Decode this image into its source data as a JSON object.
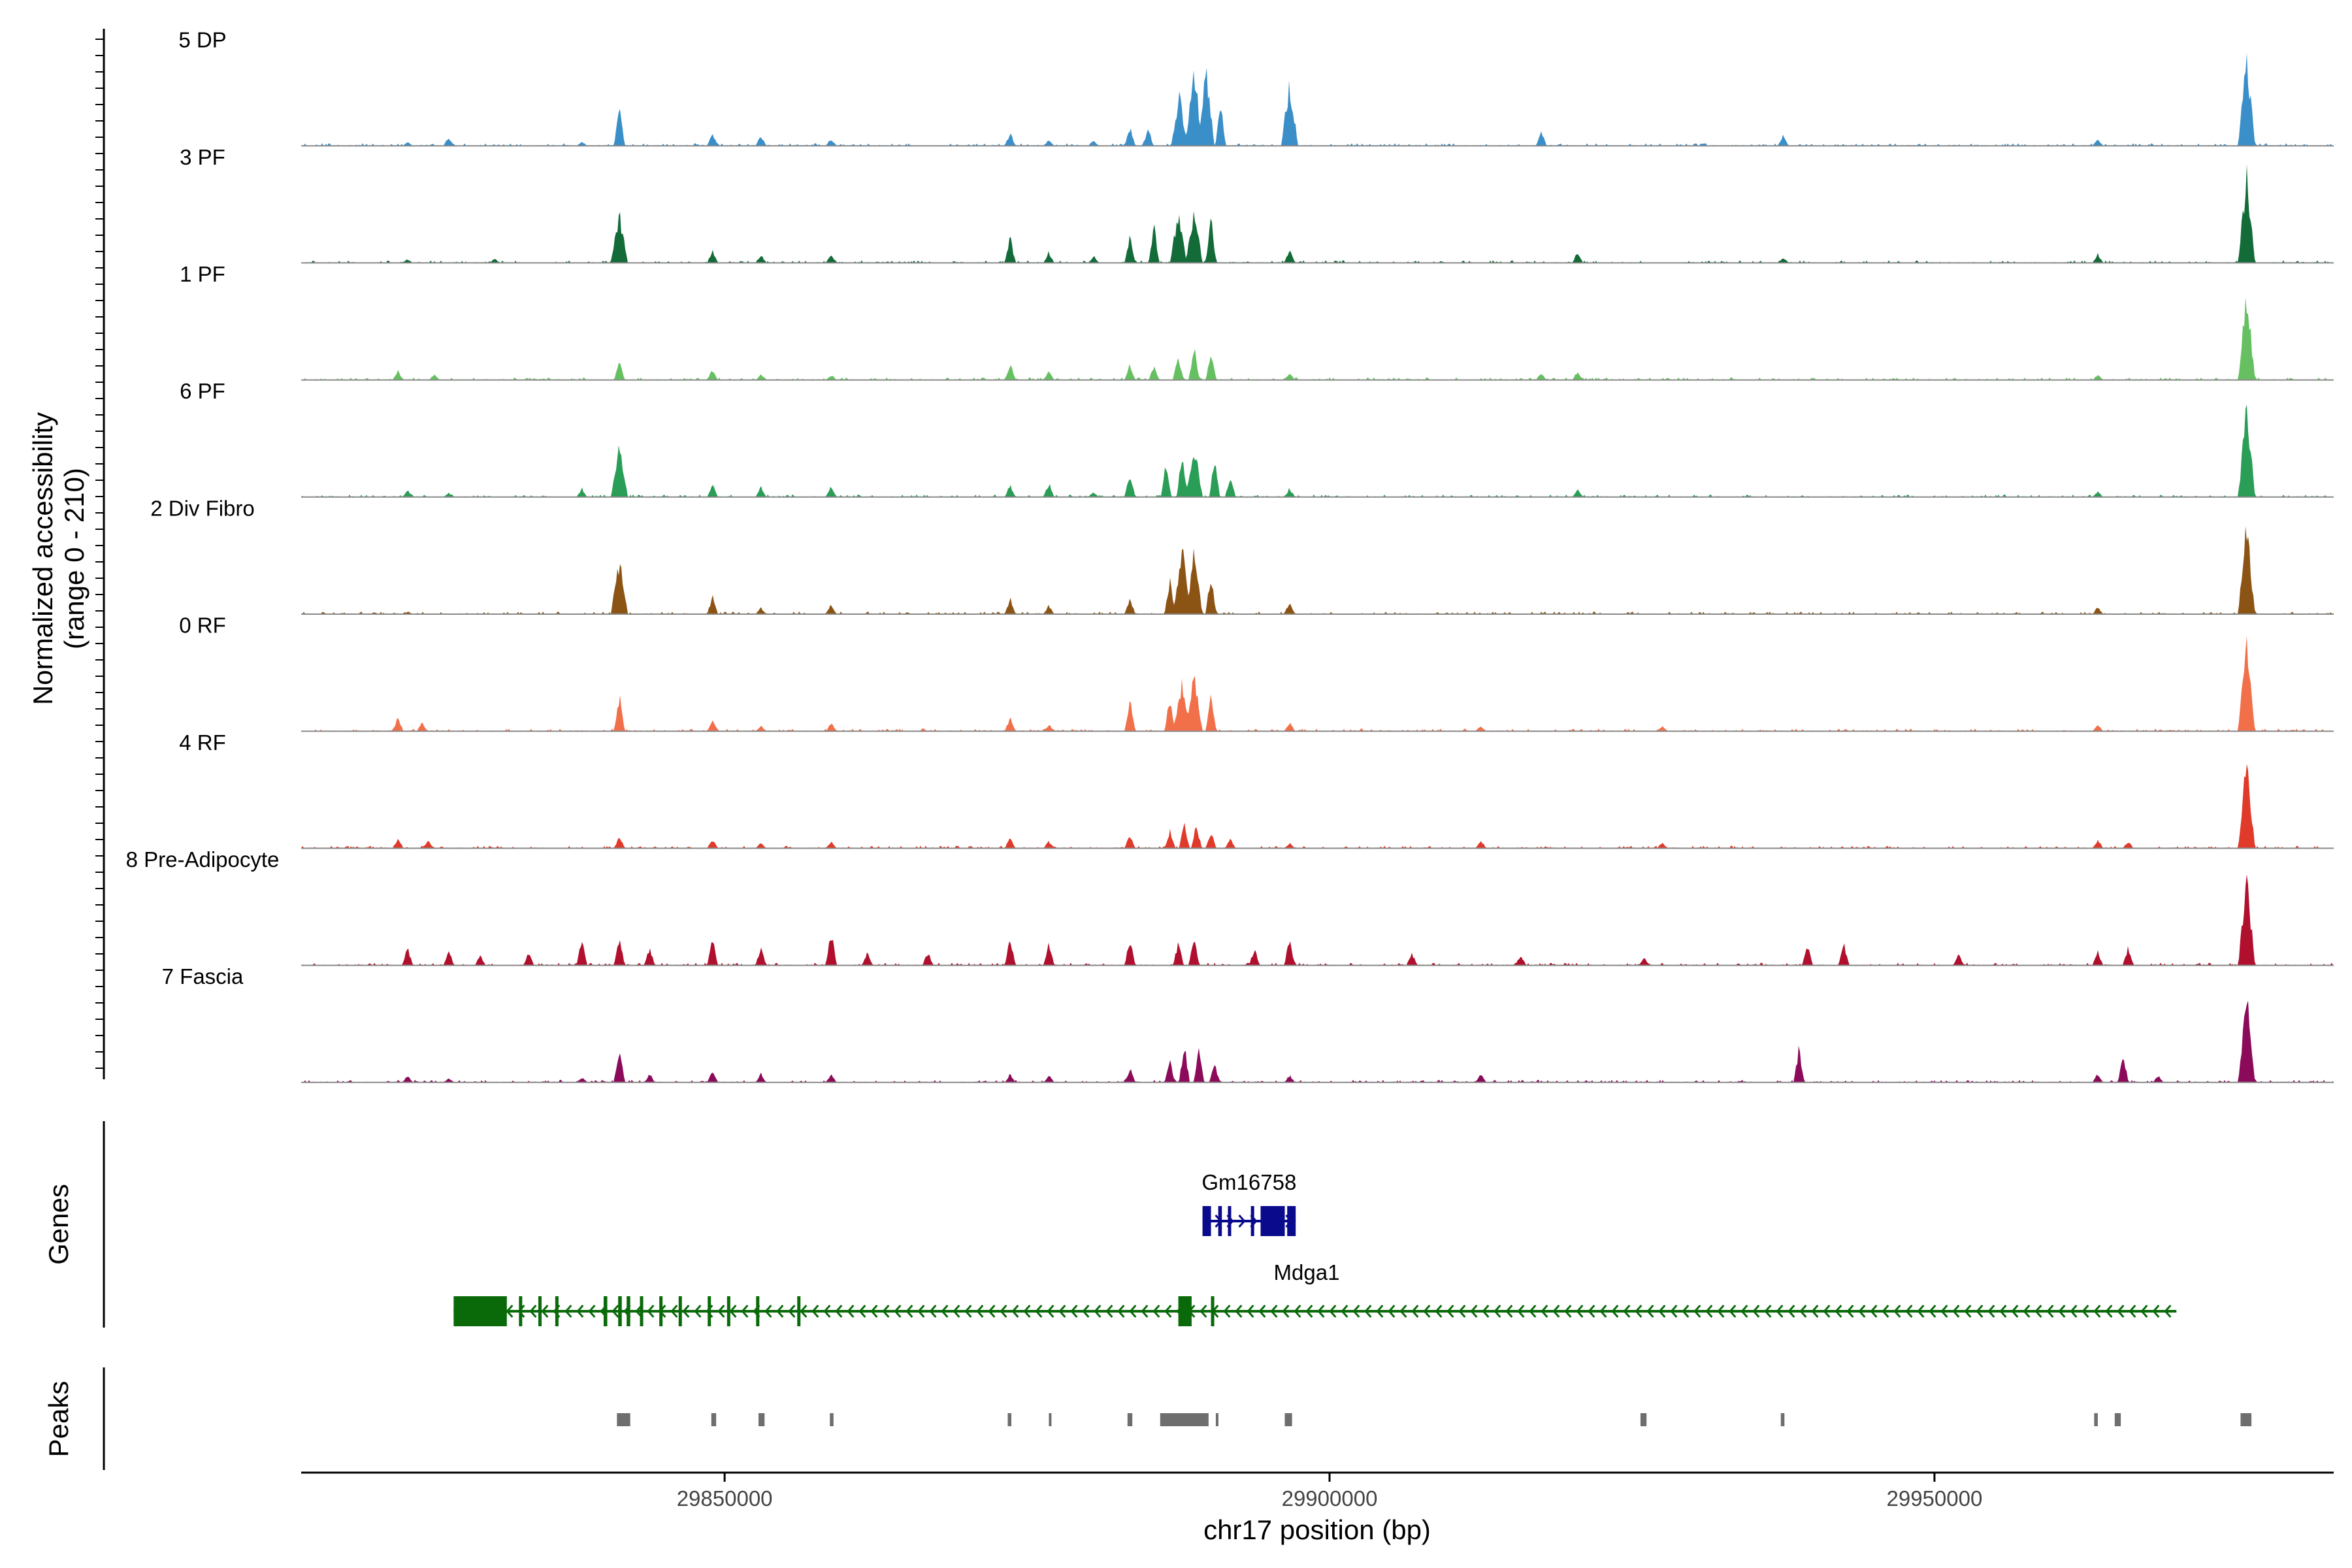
{
  "chart_data": {
    "type": "genome-coverage",
    "chromosome": "chr17",
    "x_range": [
      29815000,
      29983000
    ],
    "y_axis_label": "Normalized accessibility",
    "y_axis_range_label": "(range 0 - 210)",
    "y_range": [
      0,
      210
    ],
    "x_label": "chr17 position (bp)",
    "x_ticks": [
      {
        "value": 29850000,
        "label": "29850000"
      },
      {
        "value": 29900000,
        "label": "29900000"
      },
      {
        "value": 29950000,
        "label": "29950000"
      }
    ],
    "tracks": [
      {
        "name": "5 DP",
        "color": "#3a8fc9",
        "peaks": [
          [
            29823800,
            0.04
          ],
          [
            29827200,
            0.1
          ],
          [
            29838200,
            0.05
          ],
          [
            29841300,
            0.44
          ],
          [
            29849000,
            0.14
          ],
          [
            29853000,
            0.12
          ],
          [
            29858800,
            0.08
          ],
          [
            29873600,
            0.15
          ],
          [
            29876800,
            0.07
          ],
          [
            29880500,
            0.06
          ],
          [
            29883500,
            0.22
          ],
          [
            29885000,
            0.2
          ],
          [
            29887600,
            0.55
          ],
          [
            29888800,
            0.9
          ],
          [
            29889800,
            0.85
          ],
          [
            29891000,
            0.45
          ],
          [
            29896700,
            0.72
          ],
          [
            29917500,
            0.16
          ],
          [
            29937500,
            0.12
          ],
          [
            29963500,
            0.08
          ],
          [
            29975800,
            1.0
          ]
        ]
      },
      {
        "name": "3 PF",
        "color": "#136b38",
        "peaks": [
          [
            29823800,
            0.04
          ],
          [
            29831000,
            0.05
          ],
          [
            29841300,
            0.55
          ],
          [
            29849000,
            0.14
          ],
          [
            29853000,
            0.1
          ],
          [
            29858800,
            0.09
          ],
          [
            29873600,
            0.3
          ],
          [
            29876800,
            0.12
          ],
          [
            29880500,
            0.08
          ],
          [
            29883500,
            0.32
          ],
          [
            29885500,
            0.4
          ],
          [
            29887500,
            0.55
          ],
          [
            29888800,
            0.62
          ],
          [
            29890200,
            0.5
          ],
          [
            29896700,
            0.15
          ],
          [
            29920500,
            0.12
          ],
          [
            29937500,
            0.06
          ],
          [
            29963500,
            0.1
          ],
          [
            29975800,
            1.0
          ]
        ]
      },
      {
        "name": "1 PF",
        "color": "#66c061",
        "peaks": [
          [
            29823000,
            0.1
          ],
          [
            29826000,
            0.06
          ],
          [
            29841300,
            0.2
          ],
          [
            29849000,
            0.12
          ],
          [
            29853000,
            0.06
          ],
          [
            29858800,
            0.06
          ],
          [
            29873600,
            0.18
          ],
          [
            29876800,
            0.1
          ],
          [
            29883500,
            0.18
          ],
          [
            29885500,
            0.16
          ],
          [
            29887500,
            0.28
          ],
          [
            29888800,
            0.36
          ],
          [
            29890200,
            0.3
          ],
          [
            29896700,
            0.08
          ],
          [
            29917500,
            0.08
          ],
          [
            29920500,
            0.1
          ],
          [
            29963500,
            0.06
          ],
          [
            29975800,
            1.0
          ]
        ]
      },
      {
        "name": "6 PF",
        "color": "#2a9d56",
        "peaks": [
          [
            29823800,
            0.08
          ],
          [
            29827200,
            0.05
          ],
          [
            29838200,
            0.1
          ],
          [
            29841300,
            0.55
          ],
          [
            29849000,
            0.14
          ],
          [
            29853000,
            0.12
          ],
          [
            29858800,
            0.12
          ],
          [
            29873600,
            0.14
          ],
          [
            29876800,
            0.16
          ],
          [
            29880500,
            0.06
          ],
          [
            29883500,
            0.28
          ],
          [
            29886500,
            0.38
          ],
          [
            29887800,
            0.5
          ],
          [
            29888800,
            0.6
          ],
          [
            29890500,
            0.42
          ],
          [
            29891800,
            0.25
          ],
          [
            29896700,
            0.1
          ],
          [
            29920500,
            0.08
          ],
          [
            29963500,
            0.06
          ],
          [
            29975800,
            1.0
          ]
        ]
      },
      {
        "name": "2 Div Fibro",
        "color": "#8c5414",
        "peaks": [
          [
            29823800,
            0.03
          ],
          [
            29841300,
            0.62
          ],
          [
            29849000,
            0.2
          ],
          [
            29853000,
            0.08
          ],
          [
            29858800,
            0.12
          ],
          [
            29873600,
            0.18
          ],
          [
            29876800,
            0.1
          ],
          [
            29883500,
            0.18
          ],
          [
            29886800,
            0.4
          ],
          [
            29887800,
            0.75
          ],
          [
            29888800,
            0.68
          ],
          [
            29890200,
            0.45
          ],
          [
            29896700,
            0.14
          ],
          [
            29963500,
            0.08
          ],
          [
            29975800,
            1.0
          ]
        ]
      },
      {
        "name": "0 RF",
        "color": "#f1704a",
        "peaks": [
          [
            29823000,
            0.15
          ],
          [
            29825000,
            0.1
          ],
          [
            29841300,
            0.4
          ],
          [
            29849000,
            0.14
          ],
          [
            29853000,
            0.06
          ],
          [
            29858800,
            0.1
          ],
          [
            29873600,
            0.15
          ],
          [
            29876800,
            0.08
          ],
          [
            29883500,
            0.35
          ],
          [
            29886800,
            0.4
          ],
          [
            29887800,
            0.55
          ],
          [
            29888800,
            0.6
          ],
          [
            29890200,
            0.42
          ],
          [
            29896700,
            0.1
          ],
          [
            29912500,
            0.06
          ],
          [
            29927500,
            0.06
          ],
          [
            29963500,
            0.08
          ],
          [
            29975800,
            1.0
          ]
        ]
      },
      {
        "name": "4 RF",
        "color": "#e03a2a",
        "peaks": [
          [
            29823000,
            0.12
          ],
          [
            29825500,
            0.08
          ],
          [
            29841300,
            0.14
          ],
          [
            29849000,
            0.1
          ],
          [
            29853000,
            0.06
          ],
          [
            29858800,
            0.08
          ],
          [
            29873600,
            0.12
          ],
          [
            29876800,
            0.08
          ],
          [
            29883500,
            0.15
          ],
          [
            29886800,
            0.2
          ],
          [
            29888000,
            0.28
          ],
          [
            29889000,
            0.26
          ],
          [
            29890200,
            0.18
          ],
          [
            29891800,
            0.1
          ],
          [
            29896700,
            0.06
          ],
          [
            29912500,
            0.1
          ],
          [
            29927500,
            0.06
          ],
          [
            29963500,
            0.1
          ],
          [
            29966000,
            0.08
          ],
          [
            29975800,
            1.0
          ]
        ]
      },
      {
        "name": "8 Pre-Adipocyte",
        "color": "#b0102e",
        "peaks": [
          [
            29823800,
            0.2
          ],
          [
            29827200,
            0.18
          ],
          [
            29829800,
            0.12
          ],
          [
            29833800,
            0.14
          ],
          [
            29838200,
            0.28
          ],
          [
            29841300,
            0.32
          ],
          [
            29843800,
            0.2
          ],
          [
            29849000,
            0.3
          ],
          [
            29853000,
            0.22
          ],
          [
            29858800,
            0.4
          ],
          [
            29861800,
            0.14
          ],
          [
            29866800,
            0.15
          ],
          [
            29873600,
            0.3
          ],
          [
            29876800,
            0.25
          ],
          [
            29883500,
            0.3
          ],
          [
            29887500,
            0.25
          ],
          [
            29888800,
            0.3
          ],
          [
            29893800,
            0.2
          ],
          [
            29896700,
            0.3
          ],
          [
            29906800,
            0.14
          ],
          [
            29915800,
            0.12
          ],
          [
            29926000,
            0.1
          ],
          [
            29939500,
            0.25
          ],
          [
            29942500,
            0.25
          ],
          [
            29952000,
            0.12
          ],
          [
            29963500,
            0.15
          ],
          [
            29966000,
            0.2
          ],
          [
            29975800,
            1.0
          ]
        ]
      },
      {
        "name": "7 Fascia",
        "color": "#8c0a5a",
        "peaks": [
          [
            29823800,
            0.08
          ],
          [
            29827200,
            0.05
          ],
          [
            29838200,
            0.06
          ],
          [
            29841300,
            0.42
          ],
          [
            29843800,
            0.1
          ],
          [
            29849000,
            0.12
          ],
          [
            29853000,
            0.1
          ],
          [
            29858800,
            0.1
          ],
          [
            29873600,
            0.1
          ],
          [
            29876800,
            0.08
          ],
          [
            29883500,
            0.16
          ],
          [
            29886800,
            0.24
          ],
          [
            29888000,
            0.42
          ],
          [
            29889200,
            0.36
          ],
          [
            29890500,
            0.2
          ],
          [
            29896700,
            0.08
          ],
          [
            29912500,
            0.1
          ],
          [
            29938800,
            0.38
          ],
          [
            29963500,
            0.1
          ],
          [
            29965600,
            0.3
          ],
          [
            29968500,
            0.08
          ],
          [
            29975800,
            1.0
          ]
        ]
      }
    ],
    "genes": [
      {
        "name": "Gm16758",
        "color": "#0a0a8c",
        "strand": "+",
        "start": 29889500,
        "end": 29897200,
        "exons": [
          [
            29889500,
            29890200
          ],
          [
            29890800,
            29891100
          ],
          [
            29891600,
            29891800
          ],
          [
            29893500,
            29893700
          ],
          [
            29894300,
            29896300
          ],
          [
            29896500,
            29897200
          ]
        ]
      },
      {
        "name": "Mdga1",
        "color": "#0a6a0a",
        "strand": "-",
        "start": 29827600,
        "end": 29970000,
        "exons": [
          [
            29827600,
            29832000
          ],
          [
            29833000,
            29833200
          ],
          [
            29834600,
            29834800
          ],
          [
            29836000,
            29836200
          ],
          [
            29840000,
            29840300
          ],
          [
            29841200,
            29841500
          ],
          [
            29841900,
            29842200
          ],
          [
            29843000,
            29843200
          ],
          [
            29844600,
            29844800
          ],
          [
            29846200,
            29846400
          ],
          [
            29848600,
            29848800
          ],
          [
            29850200,
            29850400
          ],
          [
            29852600,
            29852800
          ],
          [
            29856000,
            29856200
          ],
          [
            29887500,
            29888600
          ],
          [
            29890200,
            29890400
          ]
        ]
      }
    ],
    "peaks_track": {
      "label": "Peaks",
      "color": "#6e6e6e",
      "regions": [
        [
          29841100,
          29842200
        ],
        [
          29848900,
          29849300
        ],
        [
          29852800,
          29853300
        ],
        [
          29858700,
          29859000
        ],
        [
          29873400,
          29873700
        ],
        [
          29876800,
          29876950
        ],
        [
          29883300,
          29883700
        ],
        [
          29886000,
          29890000
        ],
        [
          29890600,
          29890800
        ],
        [
          29896300,
          29896900
        ],
        [
          29925700,
          29926200
        ],
        [
          29937300,
          29937600
        ],
        [
          29963200,
          29963500
        ],
        [
          29964900,
          29965400
        ],
        [
          29975300,
          29976200
        ]
      ]
    },
    "panel_labels": {
      "genes": "Genes",
      "peaks": "Peaks"
    }
  }
}
